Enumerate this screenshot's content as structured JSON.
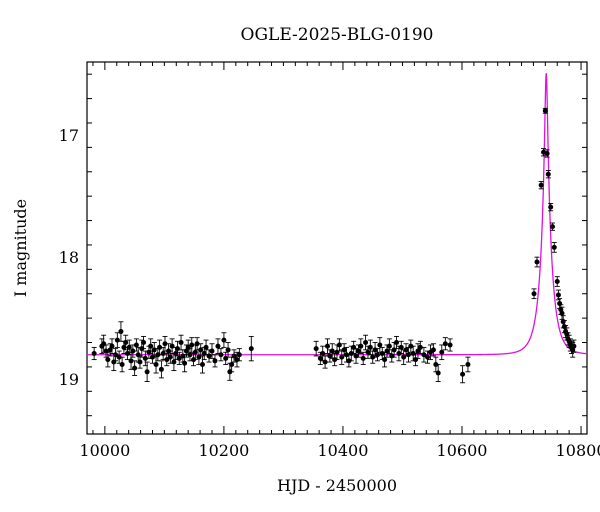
{
  "chart_data": {
    "type": "scatter",
    "title": "OGLE-2025-BLG-0190",
    "xlabel": "HJD - 2450000",
    "ylabel": "I magnitude",
    "xlim": [
      9970,
      10810
    ],
    "ylim": [
      19.45,
      16.4
    ],
    "y_inverted": true,
    "x_ticks": [
      10000,
      10200,
      10400,
      10600,
      10800
    ],
    "x_tick_labels": [
      "10000",
      "10200",
      "10400",
      "10600",
      "10800"
    ],
    "y_ticks": [
      17,
      18,
      19
    ],
    "y_tick_labels": [
      "17",
      "18",
      "19"
    ],
    "grid": false,
    "colors": {
      "points": "#000000",
      "model": "#e010e0",
      "frame": "#000000"
    },
    "model": {
      "name": "",
      "t0": 10741.5,
      "u0": 0.12,
      "tE": 18,
      "baseline": 18.8
    },
    "series": [
      {
        "name": "",
        "points": [
          [
            9982,
            18.79,
            0.05
          ],
          [
            9995,
            18.73,
            0.06
          ],
          [
            9998,
            18.71,
            0.07
          ],
          [
            10002,
            18.77,
            0.05
          ],
          [
            10005,
            18.84,
            0.06
          ],
          [
            10009,
            18.76,
            0.05
          ],
          [
            10012,
            18.73,
            0.06
          ],
          [
            10015,
            18.86,
            0.07
          ],
          [
            10018,
            18.8,
            0.05
          ],
          [
            10021,
            18.68,
            0.06
          ],
          [
            10024,
            18.82,
            0.05
          ],
          [
            10027,
            18.61,
            0.08
          ],
          [
            10029,
            18.88,
            0.06
          ],
          [
            10032,
            18.74,
            0.05
          ],
          [
            10035,
            18.7,
            0.06
          ],
          [
            10038,
            18.79,
            0.05
          ],
          [
            10041,
            18.74,
            0.06
          ],
          [
            10044,
            18.85,
            0.07
          ],
          [
            10047,
            18.77,
            0.05
          ],
          [
            10050,
            18.91,
            0.06
          ],
          [
            10053,
            18.72,
            0.05
          ],
          [
            10056,
            18.8,
            0.06
          ],
          [
            10059,
            18.86,
            0.05
          ],
          [
            10062,
            18.75,
            0.07
          ],
          [
            10065,
            18.7,
            0.05
          ],
          [
            10068,
            18.83,
            0.06
          ],
          [
            10071,
            18.94,
            0.08
          ],
          [
            10074,
            18.78,
            0.05
          ],
          [
            10077,
            18.73,
            0.06
          ],
          [
            10080,
            18.82,
            0.05
          ],
          [
            10083,
            18.76,
            0.06
          ],
          [
            10086,
            18.88,
            0.07
          ],
          [
            10089,
            18.8,
            0.05
          ],
          [
            10092,
            18.74,
            0.06
          ],
          [
            10095,
            18.92,
            0.07
          ],
          [
            10098,
            18.79,
            0.05
          ],
          [
            10101,
            18.71,
            0.06
          ],
          [
            10104,
            18.84,
            0.05
          ],
          [
            10107,
            18.77,
            0.06
          ],
          [
            10110,
            18.82,
            0.05
          ],
          [
            10113,
            18.73,
            0.06
          ],
          [
            10116,
            18.86,
            0.07
          ],
          [
            10119,
            18.79,
            0.05
          ],
          [
            10122,
            18.75,
            0.06
          ],
          [
            10125,
            18.83,
            0.05
          ],
          [
            10128,
            18.7,
            0.06
          ],
          [
            10131,
            18.81,
            0.05
          ],
          [
            10134,
            18.87,
            0.07
          ],
          [
            10137,
            18.77,
            0.05
          ],
          [
            10140,
            18.74,
            0.06
          ],
          [
            10143,
            18.8,
            0.05
          ],
          [
            10146,
            18.72,
            0.06
          ],
          [
            10149,
            18.84,
            0.05
          ],
          [
            10152,
            18.78,
            0.06
          ],
          [
            10155,
            18.71,
            0.05
          ],
          [
            10158,
            18.82,
            0.06
          ],
          [
            10161,
            18.76,
            0.05
          ],
          [
            10164,
            18.88,
            0.07
          ],
          [
            10167,
            18.79,
            0.05
          ],
          [
            10170,
            18.74,
            0.06
          ],
          [
            10175,
            18.81,
            0.05
          ],
          [
            10180,
            18.77,
            0.06
          ],
          [
            10185,
            18.85,
            0.05
          ],
          [
            10190,
            18.73,
            0.06
          ],
          [
            10195,
            18.8,
            0.05
          ],
          [
            10200,
            18.68,
            0.06
          ],
          [
            10203,
            18.83,
            0.05
          ],
          [
            10207,
            18.76,
            0.06
          ],
          [
            10210,
            18.94,
            0.07
          ],
          [
            10213,
            18.88,
            0.06
          ],
          [
            10217,
            18.81,
            0.05
          ],
          [
            10222,
            18.84,
            0.06
          ],
          [
            10226,
            18.8,
            0.05
          ],
          [
            10246,
            18.75,
            0.1
          ],
          [
            10355,
            18.75,
            0.06
          ],
          [
            10362,
            18.83,
            0.05
          ],
          [
            10366,
            18.79,
            0.06
          ],
          [
            10370,
            18.86,
            0.05
          ],
          [
            10374,
            18.73,
            0.06
          ],
          [
            10378,
            18.81,
            0.05
          ],
          [
            10382,
            18.77,
            0.06
          ],
          [
            10386,
            18.84,
            0.05
          ],
          [
            10390,
            18.78,
            0.06
          ],
          [
            10394,
            18.72,
            0.05
          ],
          [
            10398,
            18.82,
            0.06
          ],
          [
            10402,
            18.76,
            0.05
          ],
          [
            10406,
            18.8,
            0.06
          ],
          [
            10410,
            18.85,
            0.05
          ],
          [
            10414,
            18.79,
            0.06
          ],
          [
            10418,
            18.74,
            0.05
          ],
          [
            10422,
            18.81,
            0.06
          ],
          [
            10426,
            18.77,
            0.05
          ],
          [
            10430,
            18.73,
            0.06
          ],
          [
            10434,
            18.83,
            0.05
          ],
          [
            10438,
            18.7,
            0.06
          ],
          [
            10442,
            18.78,
            0.05
          ],
          [
            10446,
            18.74,
            0.06
          ],
          [
            10450,
            18.82,
            0.05
          ],
          [
            10454,
            18.76,
            0.06
          ],
          [
            10458,
            18.8,
            0.05
          ],
          [
            10462,
            18.72,
            0.06
          ],
          [
            10466,
            18.79,
            0.05
          ],
          [
            10470,
            18.84,
            0.06
          ],
          [
            10474,
            18.77,
            0.05
          ],
          [
            10478,
            18.73,
            0.06
          ],
          [
            10482,
            18.81,
            0.05
          ],
          [
            10486,
            18.76,
            0.06
          ],
          [
            10490,
            18.7,
            0.05
          ],
          [
            10494,
            18.79,
            0.06
          ],
          [
            10498,
            18.74,
            0.05
          ],
          [
            10502,
            18.82,
            0.06
          ],
          [
            10506,
            18.76,
            0.05
          ],
          [
            10510,
            18.8,
            0.06
          ],
          [
            10514,
            18.73,
            0.05
          ],
          [
            10518,
            18.79,
            0.06
          ],
          [
            10522,
            18.84,
            0.05
          ],
          [
            10526,
            18.77,
            0.06
          ],
          [
            10530,
            18.74,
            0.05
          ],
          [
            10536,
            18.8,
            0.06
          ],
          [
            10542,
            18.82,
            0.05
          ],
          [
            10547,
            18.78,
            0.06
          ],
          [
            10552,
            18.76,
            0.05
          ],
          [
            10556,
            18.88,
            0.06
          ],
          [
            10560,
            18.95,
            0.07
          ],
          [
            10566,
            18.78,
            0.06
          ],
          [
            10572,
            18.71,
            0.05
          ],
          [
            10580,
            18.72,
            0.05
          ],
          [
            10601,
            18.96,
            0.07
          ],
          [
            10610,
            18.88,
            0.06
          ],
          [
            10721,
            18.3,
            0.04
          ],
          [
            10726,
            18.04,
            0.04
          ],
          [
            10733,
            17.41,
            0.03
          ],
          [
            10737,
            17.14,
            0.03
          ],
          [
            10740,
            16.8,
            0.02
          ],
          [
            10743,
            17.15,
            0.03
          ],
          [
            10745,
            17.32,
            0.03
          ],
          [
            10749,
            17.59,
            0.03
          ],
          [
            10752,
            17.75,
            0.03
          ],
          [
            10755,
            17.92,
            0.04
          ],
          [
            10760,
            18.2,
            0.04
          ],
          [
            10762,
            18.31,
            0.04
          ],
          [
            10764,
            18.38,
            0.04
          ],
          [
            10766,
            18.43,
            0.04
          ],
          [
            10768,
            18.46,
            0.05
          ],
          [
            10770,
            18.53,
            0.05
          ],
          [
            10772,
            18.57,
            0.05
          ],
          [
            10774,
            18.61,
            0.05
          ],
          [
            10776,
            18.63,
            0.05
          ],
          [
            10778,
            18.67,
            0.05
          ],
          [
            10780,
            18.69,
            0.05
          ],
          [
            10782,
            18.72,
            0.05
          ],
          [
            10784,
            18.74,
            0.05
          ],
          [
            10786,
            18.76,
            0.06
          ],
          [
            10788,
            18.73,
            0.05
          ]
        ]
      }
    ]
  }
}
